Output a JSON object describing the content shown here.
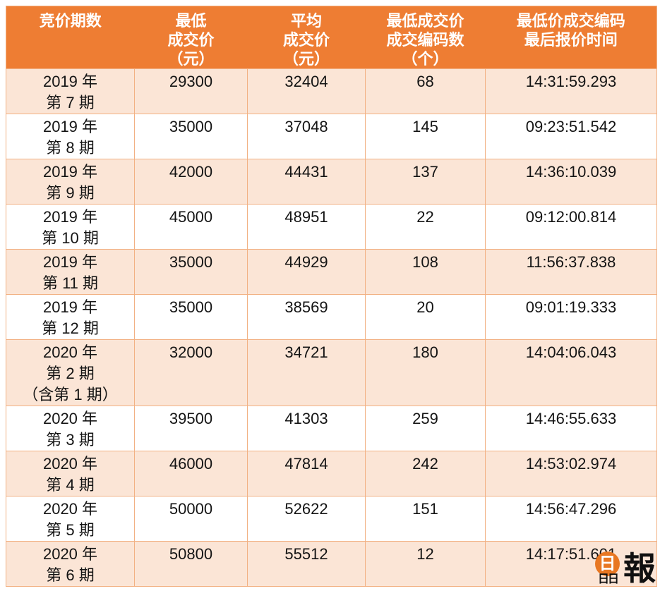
{
  "colors": {
    "header_bg": "#EE7D33",
    "header_text": "#FFFFFF",
    "row_shaded_bg": "#FBE5D6",
    "row_plain_bg": "#FFFFFF",
    "border": "#F2B183",
    "body_text": "#141414",
    "logo_orange": "#E87722"
  },
  "table": {
    "columns": [
      {
        "id": "period",
        "lines": [
          "竞价期数"
        ]
      },
      {
        "id": "min_price",
        "lines": [
          "最低",
          "成交价",
          "（元）"
        ]
      },
      {
        "id": "avg_price",
        "lines": [
          "平均",
          "成交价",
          "（元）"
        ]
      },
      {
        "id": "code_count",
        "lines": [
          "最低成交价",
          "成交编码数",
          "（个）"
        ]
      },
      {
        "id": "last_time",
        "lines": [
          "最低价成交编码",
          "最后报价时间"
        ]
      }
    ],
    "rows": [
      {
        "period": [
          "2019 年",
          "第 7 期"
        ],
        "min_price": "29300",
        "avg_price": "32404",
        "code_count": "68",
        "last_time": "14:31:59.293",
        "shaded": true
      },
      {
        "period": [
          "2019 年",
          "第 8 期"
        ],
        "min_price": "35000",
        "avg_price": "37048",
        "code_count": "145",
        "last_time": "09:23:51.542",
        "shaded": false
      },
      {
        "period": [
          "2019 年",
          "第 9 期"
        ],
        "min_price": "42000",
        "avg_price": "44431",
        "code_count": "137",
        "last_time": "14:36:10.039",
        "shaded": true
      },
      {
        "period": [
          "2019 年",
          "第 10 期"
        ],
        "min_price": "45000",
        "avg_price": "48951",
        "code_count": "22",
        "last_time": "09:12:00.814",
        "shaded": false
      },
      {
        "period": [
          "2019 年",
          "第 11 期"
        ],
        "min_price": "35000",
        "avg_price": "44929",
        "code_count": "108",
        "last_time": "11:56:37.838",
        "shaded": true
      },
      {
        "period": [
          "2019 年",
          "第 12 期"
        ],
        "min_price": "35000",
        "avg_price": "38569",
        "code_count": "20",
        "last_time": "09:01:19.333",
        "shaded": false
      },
      {
        "period": [
          "2020 年",
          "第 2 期",
          "（含第 1 期）"
        ],
        "min_price": "32000",
        "avg_price": "34721",
        "code_count": "180",
        "last_time": "14:04:06.043",
        "shaded": true
      },
      {
        "period": [
          "2020 年",
          "第 3 期"
        ],
        "min_price": "39500",
        "avg_price": "41303",
        "code_count": "259",
        "last_time": "14:46:55.633",
        "shaded": false
      },
      {
        "period": [
          "2020 年",
          "第 4 期"
        ],
        "min_price": "46000",
        "avg_price": "47814",
        "code_count": "242",
        "last_time": "14:53:02.974",
        "shaded": true
      },
      {
        "period": [
          "2020 年",
          "第 5 期"
        ],
        "min_price": "50000",
        "avg_price": "52622",
        "code_count": "151",
        "last_time": "14:56:47.296",
        "shaded": false
      },
      {
        "period": [
          "2020 年",
          "第 6 期"
        ],
        "min_price": "50800",
        "avg_price": "55512",
        "code_count": "12",
        "last_time": "14:17:51.601",
        "shaded": true
      }
    ]
  },
  "watermark": {
    "name": "晶報",
    "circle_char": "日",
    "sub_chars": "日日",
    "main_char": "報"
  },
  "chart_data": {
    "type": "table",
    "columns": [
      "竞价期数",
      "最低成交价（元）",
      "平均成交价（元）",
      "最低成交价成交编码数（个）",
      "最低价成交编码最后报价时间"
    ],
    "rows": [
      [
        "2019年第7期",
        29300,
        32404,
        68,
        "14:31:59.293"
      ],
      [
        "2019年第8期",
        35000,
        37048,
        145,
        "09:23:51.542"
      ],
      [
        "2019年第9期",
        42000,
        44431,
        137,
        "14:36:10.039"
      ],
      [
        "2019年第10期",
        45000,
        48951,
        22,
        "09:12:00.814"
      ],
      [
        "2019年第11期",
        35000,
        44929,
        108,
        "11:56:37.838"
      ],
      [
        "2019年第12期",
        35000,
        38569,
        20,
        "09:01:19.333"
      ],
      [
        "2020年第2期（含第1期）",
        32000,
        34721,
        180,
        "14:04:06.043"
      ],
      [
        "2020年第3期",
        39500,
        41303,
        259,
        "14:46:55.633"
      ],
      [
        "2020年第4期",
        46000,
        47814,
        242,
        "14:53:02.974"
      ],
      [
        "2020年第5期",
        50000,
        52622,
        151,
        "14:56:47.296"
      ],
      [
        "2020年第6期",
        50800,
        55512,
        12,
        "14:17:51.601"
      ]
    ]
  }
}
